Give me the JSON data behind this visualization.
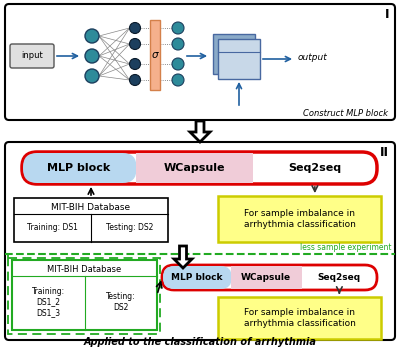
{
  "bg_color": "#ffffff",
  "section_I_label": "I",
  "section_II_label": "II",
  "construct_mlp_label": "Construct MLP block",
  "input_label": "input",
  "output_label": "output",
  "mlp_block_label": "MLP block",
  "wcapsule_label": "WCapsule",
  "seq2seq_label": "Seq2seq",
  "mit_bih_label": "MIT-BIH Database",
  "training_ds1_label": "Training: DS1",
  "testing_ds2_label": "Testing: DS2",
  "for_sample_label": "For sample imbalance in\narrhythmia classification",
  "less_sample_label": "less sample experiment",
  "mit_bih2_label": "MIT-BIH Database",
  "training_ds1_2_label": "Training:\nDS1_2\nDS1_3",
  "testing_ds2_2_label": "Testing:\nDS2",
  "for_sample2_label": "For sample imbalance in\narrhythmia classification",
  "applied_label": "Applied to the classification of arrhythmia",
  "sigma_label": "σ",
  "node_teal": "#2e8b9a",
  "node_dark": "#1c3f5e",
  "sigma_fill": "#f5b08c",
  "sigma_edge": "#d4804a",
  "arrow_blue": "#2060a0",
  "output_box_light": "#c8d8e8",
  "output_box_dark": "#8aaac8",
  "green_dashed": "#22aa22",
  "yellow_fill": "#ffff88",
  "yellow_edge": "#cccc00",
  "red_edge": "#dd0000",
  "blue_fill": "#b8d8f0",
  "pink_fill": "#f0ccd8"
}
